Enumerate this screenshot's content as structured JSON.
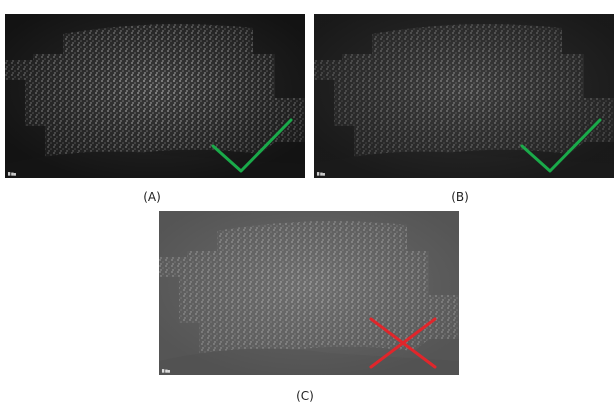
{
  "captions": {
    "a": "(A)",
    "b": "(B)",
    "c": "(C)"
  },
  "panels": {
    "a": {
      "mark": "check-icon",
      "mark_color": "#1aaa4a",
      "background": "#2a2a2a",
      "texture": "#9a9a9a"
    },
    "b": {
      "mark": "check-icon",
      "mark_color": "#1aaa4a",
      "background": "#2e2e2e",
      "texture": "#7f7f7f"
    },
    "c": {
      "mark": "cross-icon",
      "mark_color": "#e0262b",
      "background": "#6a6a6a",
      "texture": "#a8a8a8"
    }
  }
}
